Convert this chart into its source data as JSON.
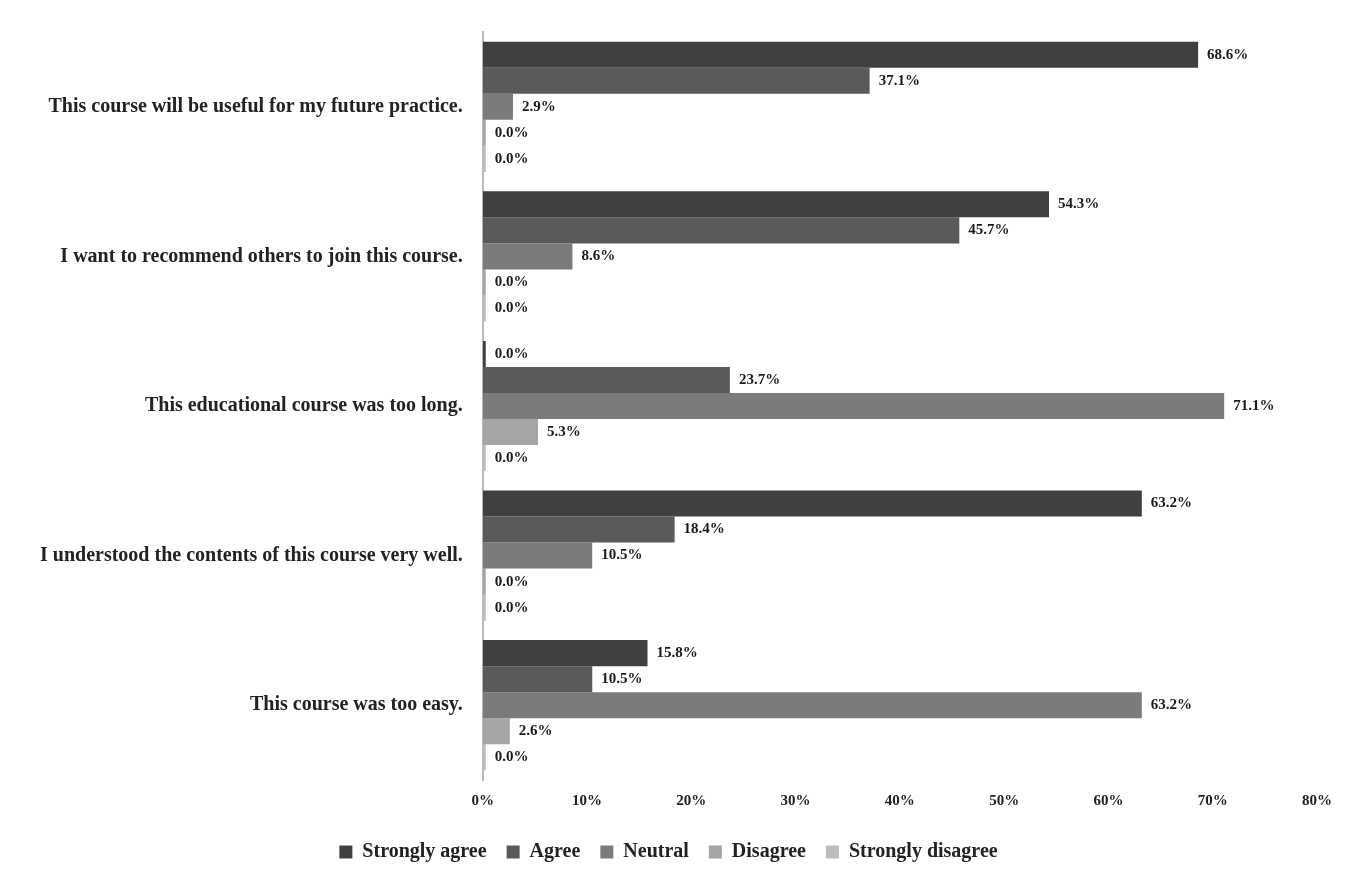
{
  "chart_data": {
    "type": "bar",
    "orientation": "horizontal",
    "categories": [
      "This course will be useful for my future practice.",
      "I want to recommend others to join this course.",
      "This educational course was too long.",
      "I understood the contents of this course very well.",
      "This course was too easy."
    ],
    "series": [
      {
        "name": "Strongly agree",
        "color": "#404040",
        "values": [
          68.6,
          54.3,
          0.0,
          63.2,
          15.8
        ],
        "value_labels": [
          "68.6%",
          "54.3%",
          "0.0%",
          "63.2%",
          "15.8%"
        ]
      },
      {
        "name": "Agree",
        "color": "#5a5a5a",
        "values": [
          37.1,
          45.7,
          23.7,
          18.4,
          10.5
        ],
        "value_labels": [
          "37.1%",
          "45.7%",
          "23.7%",
          "18.4%",
          "10.5%"
        ]
      },
      {
        "name": "Neutral",
        "color": "#7b7b7b",
        "values": [
          2.9,
          8.6,
          71.1,
          10.5,
          63.2
        ],
        "value_labels": [
          "2.9%",
          "8.6%",
          "71.1%",
          "10.5%",
          "63.2%"
        ]
      },
      {
        "name": "Disagree",
        "color": "#a5a5a5",
        "values": [
          0.0,
          0.0,
          5.3,
          0.0,
          2.6
        ],
        "value_labels": [
          "0.0%",
          "0.0%",
          "5.3%",
          "0.0%",
          "2.6%"
        ]
      },
      {
        "name": "Strongly disagree",
        "color": "#bdbdbd",
        "values": [
          0.0,
          0.0,
          0.0,
          0.0,
          0.0
        ],
        "value_labels": [
          "0.0%",
          "0.0%",
          "0.0%",
          "0.0%",
          "0.0%"
        ]
      }
    ],
    "xlim": [
      0,
      80
    ],
    "xticks": [
      {
        "value": 0,
        "label": "0%"
      },
      {
        "value": 10,
        "label": "10%"
      },
      {
        "value": 20,
        "label": "20%"
      },
      {
        "value": 30,
        "label": "30%"
      },
      {
        "value": 40,
        "label": "40%"
      },
      {
        "value": 50,
        "label": "50%"
      },
      {
        "value": 60,
        "label": "60%"
      },
      {
        "value": 70,
        "label": "70%"
      },
      {
        "value": 80,
        "label": "80%"
      }
    ],
    "grid": false,
    "legend": "bottom"
  }
}
